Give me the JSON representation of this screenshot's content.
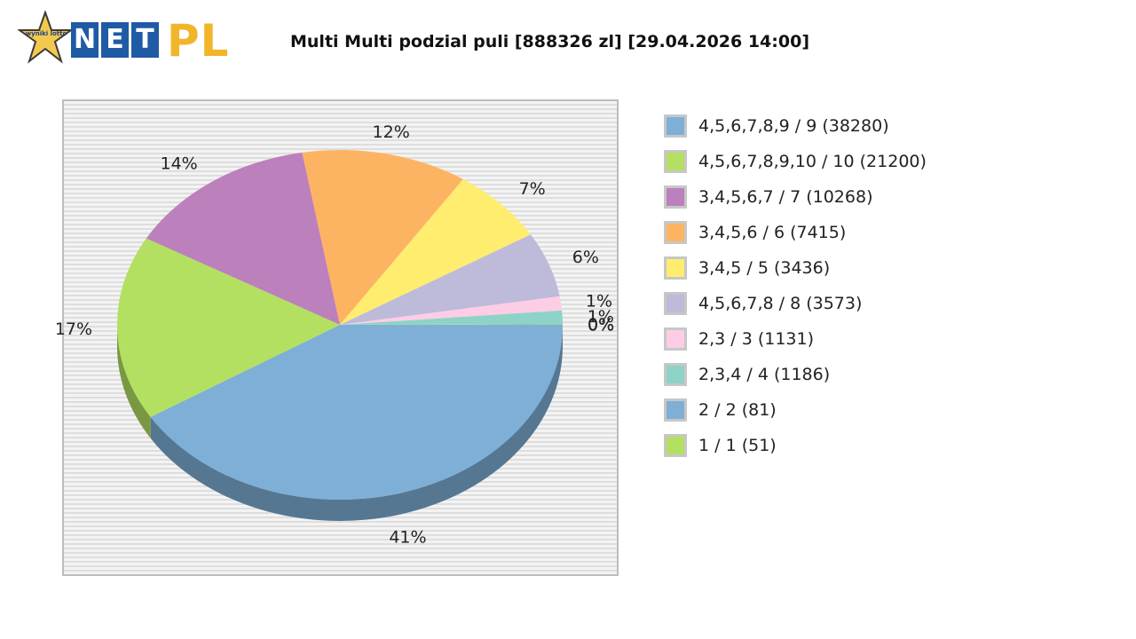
{
  "logo": {
    "star_text": "wyniki lotto",
    "net_letters": [
      "N",
      "E",
      "T"
    ],
    "pl_text": "PL"
  },
  "title": "Multi Multi podzial puli [888326 zl] [29.04.2026 14:00]",
  "chart_data": {
    "type": "pie",
    "title": "Multi Multi podzial puli [888326 zl] [29.04.2026 14:00]",
    "slices": [
      {
        "label": "2 / 2 (81)",
        "value": 41,
        "percent_label": "41%",
        "color": "#7eafd6"
      },
      {
        "label": "1 / 1 (51)",
        "value": 17,
        "percent_label": "17%",
        "color": "#b3e061"
      },
      {
        "label": "3,4,5,6,7 / 7 (10268)",
        "value": 14,
        "percent_label": "14%",
        "color": "#bc80bd"
      },
      {
        "label": "3,4,5,6 / 6 (7415)",
        "value": 12,
        "percent_label": "12%",
        "color": "#fdb462"
      },
      {
        "label": "3,4,5 / 5 (3436)",
        "value": 7,
        "percent_label": "7%",
        "color": "#ffed6f"
      },
      {
        "label": "4,5,6,7,8 / 8 (3573)",
        "value": 6,
        "percent_label": "6%",
        "color": "#bebada"
      },
      {
        "label": "2,3 / 3 (1131)",
        "value": 1.3,
        "percent_label": "1%",
        "color": "#fccde5"
      },
      {
        "label": "2,3,4 / 4 (1186)",
        "value": 1.2,
        "percent_label": "1%",
        "color": "#8dd3c7"
      },
      {
        "label": "4,5,6,7,8,9 / 9 (38280)",
        "value": 0.05,
        "percent_label": "0%",
        "color": "#7eafd6"
      },
      {
        "label": "4,5,6,7,8,9,10 / 10 (21200)",
        "value": 0.05,
        "percent_label": "0%",
        "color": "#b3e061"
      }
    ],
    "legend": [
      {
        "label": "4,5,6,7,8,9 / 9 (38280)",
        "color": "#7eafd6"
      },
      {
        "label": "4,5,6,7,8,9,10 / 10 (21200)",
        "color": "#b3e061"
      },
      {
        "label": "3,4,5,6,7 / 7 (10268)",
        "color": "#bc80bd"
      },
      {
        "label": "3,4,5,6 / 6 (7415)",
        "color": "#fdb462"
      },
      {
        "label": "3,4,5 / 5 (3436)",
        "color": "#ffed6f"
      },
      {
        "label": "4,5,6,7,8 / 8 (3573)",
        "color": "#bebada"
      },
      {
        "label": "2,3 / 3 (1131)",
        "color": "#fccde5"
      },
      {
        "label": "2,3,4 / 4 (1186)",
        "color": "#8dd3c7"
      },
      {
        "label": "2 / 2 (81)",
        "color": "#7eafd6"
      },
      {
        "label": "1 / 1 (51)",
        "color": "#b3e061"
      }
    ],
    "legend_position": "right"
  }
}
